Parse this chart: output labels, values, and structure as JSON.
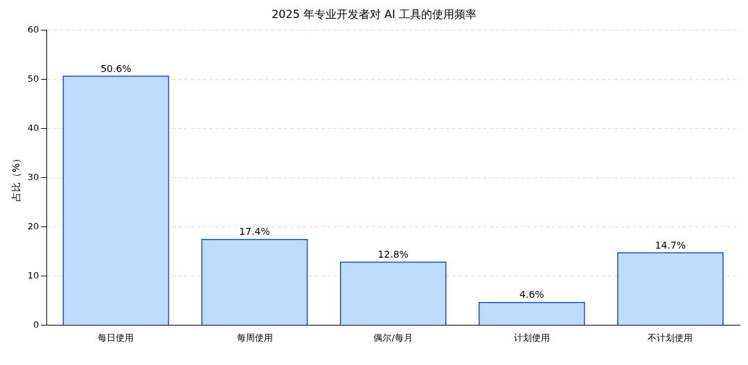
{
  "chart_data": {
    "type": "bar",
    "title": "2025 年专业开发者对 AI 工具的使用频率",
    "ylabel": "占比（%）",
    "categories": [
      "每日使用",
      "每周使用",
      "偶尔/每月",
      "计划使用",
      "不计划使用"
    ],
    "values": [
      50.6,
      17.4,
      12.8,
      4.6,
      14.7
    ],
    "value_labels": [
      "50.6%",
      "17.4%",
      "12.8%",
      "4.6%",
      "14.7%"
    ],
    "color": "#bfdbfe",
    "ylim": [
      0,
      60
    ],
    "yticks": [
      0,
      10,
      20,
      30,
      40,
      50,
      60
    ],
    "grid": "y",
    "legend": false
  }
}
